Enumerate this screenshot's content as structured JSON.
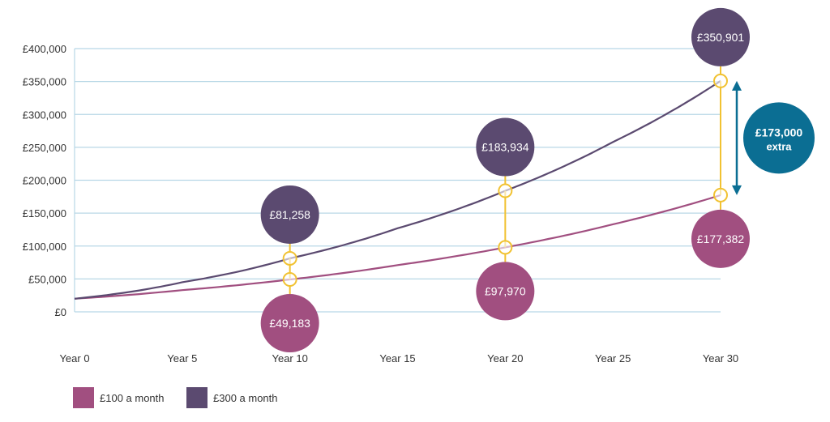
{
  "chart_data": {
    "type": "line",
    "title": "",
    "xlabel": "",
    "ylabel": "",
    "x": [
      0,
      5,
      10,
      15,
      20,
      25,
      30
    ],
    "xlim": [
      0,
      30
    ],
    "ylim": [
      0,
      400000
    ],
    "x_tick_labels": [
      "Year 0",
      "Year 5",
      "Year 10",
      "Year 15",
      "Year 20",
      "Year 25",
      "Year 30"
    ],
    "y_ticks": [
      0,
      50000,
      100000,
      150000,
      200000,
      250000,
      300000,
      350000,
      400000
    ],
    "y_tick_labels": [
      "£0",
      "£50,000",
      "£100,000",
      "£150,000",
      "£200,000",
      "£250,000",
      "£300,000",
      "£350,000",
      "£400,000"
    ],
    "grid": true,
    "legend_position": "bottom-left",
    "series": [
      {
        "name": "£100 a month",
        "color": "#a14f80",
        "values": [
          20000,
          33000,
          49183,
          71000,
          97970,
          133000,
          177382
        ]
      },
      {
        "name": "£300 a month",
        "color": "#5b4a70",
        "values": [
          20000,
          45000,
          81258,
          127000,
          183934,
          258000,
          350901
        ]
      }
    ],
    "annotations": [
      {
        "year": 10,
        "label": "£81,258",
        "series": "£300 a month",
        "placement": "above"
      },
      {
        "year": 10,
        "label": "£49,183",
        "series": "£100 a month",
        "placement": "below"
      },
      {
        "year": 20,
        "label": "£183,934",
        "series": "£300 a month",
        "placement": "above"
      },
      {
        "year": 20,
        "label": "£97,970",
        "series": "£100 a month",
        "placement": "below"
      },
      {
        "year": 30,
        "label": "£350,901",
        "series": "£300 a month",
        "placement": "above"
      },
      {
        "year": 30,
        "label": "£177,382",
        "series": "£100 a month",
        "placement": "below"
      }
    ],
    "callout": {
      "line1": "£173,000",
      "line2": "extra",
      "color": "#0b6e93"
    },
    "colors": {
      "grid": "#b8d7e6",
      "connector": "#f1c232",
      "axis_text": "#333333"
    }
  }
}
